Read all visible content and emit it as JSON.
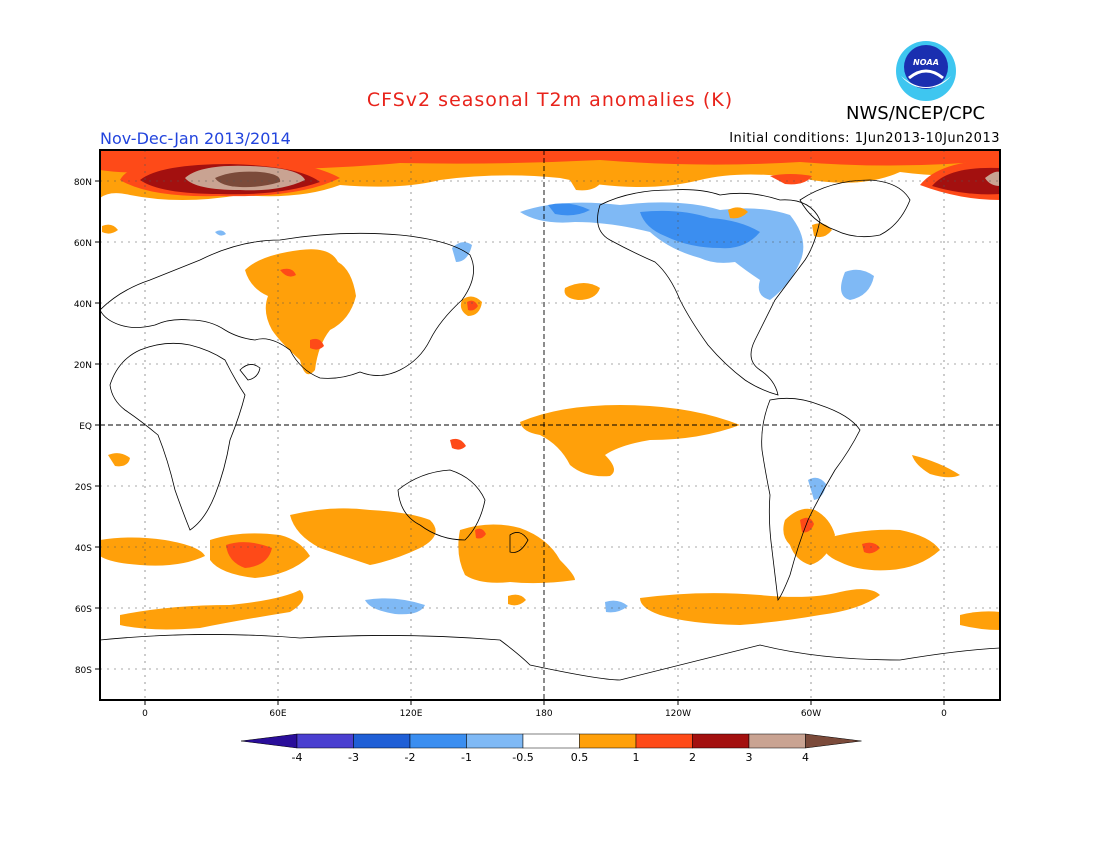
{
  "title": "CFSv2 seasonal T2m anomalies (K)",
  "period": "Nov-Dec-Jan 2013/2014",
  "initial_conditions": "Initial conditions: 1Jun2013-10Jun2013",
  "agency": "NWS/NCEP/CPC",
  "logo_text": "NOAA",
  "lat_labels": [
    "80N",
    "60N",
    "40N",
    "20N",
    "EQ",
    "20S",
    "40S",
    "60S",
    "80S"
  ],
  "lon_labels": [
    "0",
    "60E",
    "120E",
    "180",
    "120W",
    "60W",
    "0"
  ],
  "colorbar": {
    "labels": [
      "-4",
      "-3",
      "-2",
      "-1",
      "-0.5",
      "0.5",
      "1",
      "2",
      "3",
      "4"
    ],
    "colors": [
      "#2a0e9a",
      "#4a3fd0",
      "#1f5fd6",
      "#3b8ef0",
      "#7fb9f5",
      "#ffffff",
      "#ffa00a",
      "#fe4a18",
      "#a3100f",
      "#c9a392",
      "#7b4a3a"
    ]
  }
}
